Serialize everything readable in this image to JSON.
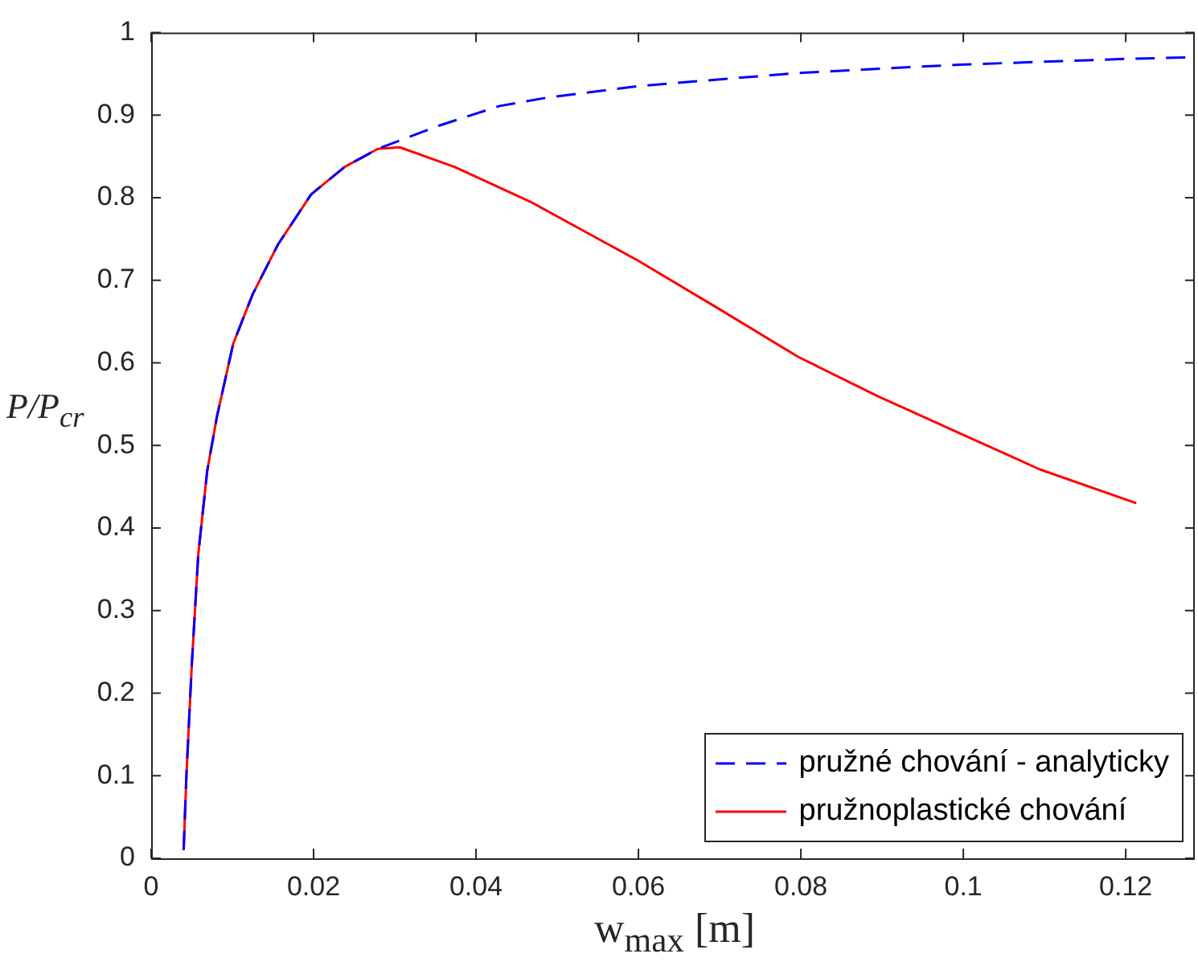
{
  "chart_data": {
    "type": "line",
    "xlabel": "w$_{max}$ [m]",
    "ylabel": "P/P$_{cr}$",
    "xlim": [
      0,
      0.1285
    ],
    "xticks": [
      0,
      0.02,
      0.04,
      0.06,
      0.08,
      0.1,
      0.12
    ],
    "ylim": [
      0,
      1
    ],
    "yticks": [
      0,
      0.1,
      0.2,
      0.3,
      0.4,
      0.5,
      0.6,
      0.7,
      0.8,
      0.9,
      1
    ],
    "legend": "bottom right",
    "marker": "none",
    "series": [
      {
        "name": "pružné chování - analyticky",
        "color": "#0000ff",
        "line_style": "dashed",
        "x": [
          0.004,
          0.00434,
          0.005,
          0.0058,
          0.0069,
          0.0081,
          0.0101,
          0.0125,
          0.0156,
          0.0197,
          0.0238,
          0.0279,
          0.0354,
          0.0429,
          0.0487,
          0.0599,
          0.0797,
          0.0995,
          0.12,
          0.1285
        ],
        "values": [
          0.01,
          0.1,
          0.234,
          0.368,
          0.469,
          0.535,
          0.623,
          0.683,
          0.743,
          0.804,
          0.837,
          0.859,
          0.887,
          0.911,
          0.921,
          0.935,
          0.951,
          0.961,
          0.968,
          0.97
        ]
      },
      {
        "name": "pružnoplastické chování",
        "color": "#ff0000",
        "line_style": "solid",
        "x": [
          0.004,
          0.00434,
          0.005,
          0.0058,
          0.0069,
          0.0081,
          0.0101,
          0.0125,
          0.0156,
          0.0197,
          0.0238,
          0.0279,
          0.0306,
          0.0374,
          0.0467,
          0.0599,
          0.0698,
          0.0797,
          0.0896,
          0.0995,
          0.1094,
          0.1213
        ],
        "values": [
          0.01,
          0.1,
          0.234,
          0.368,
          0.469,
          0.535,
          0.623,
          0.683,
          0.743,
          0.804,
          0.837,
          0.859,
          0.861,
          0.837,
          0.795,
          0.724,
          0.666,
          0.607,
          0.559,
          0.515,
          0.471,
          0.43
        ]
      }
    ]
  }
}
